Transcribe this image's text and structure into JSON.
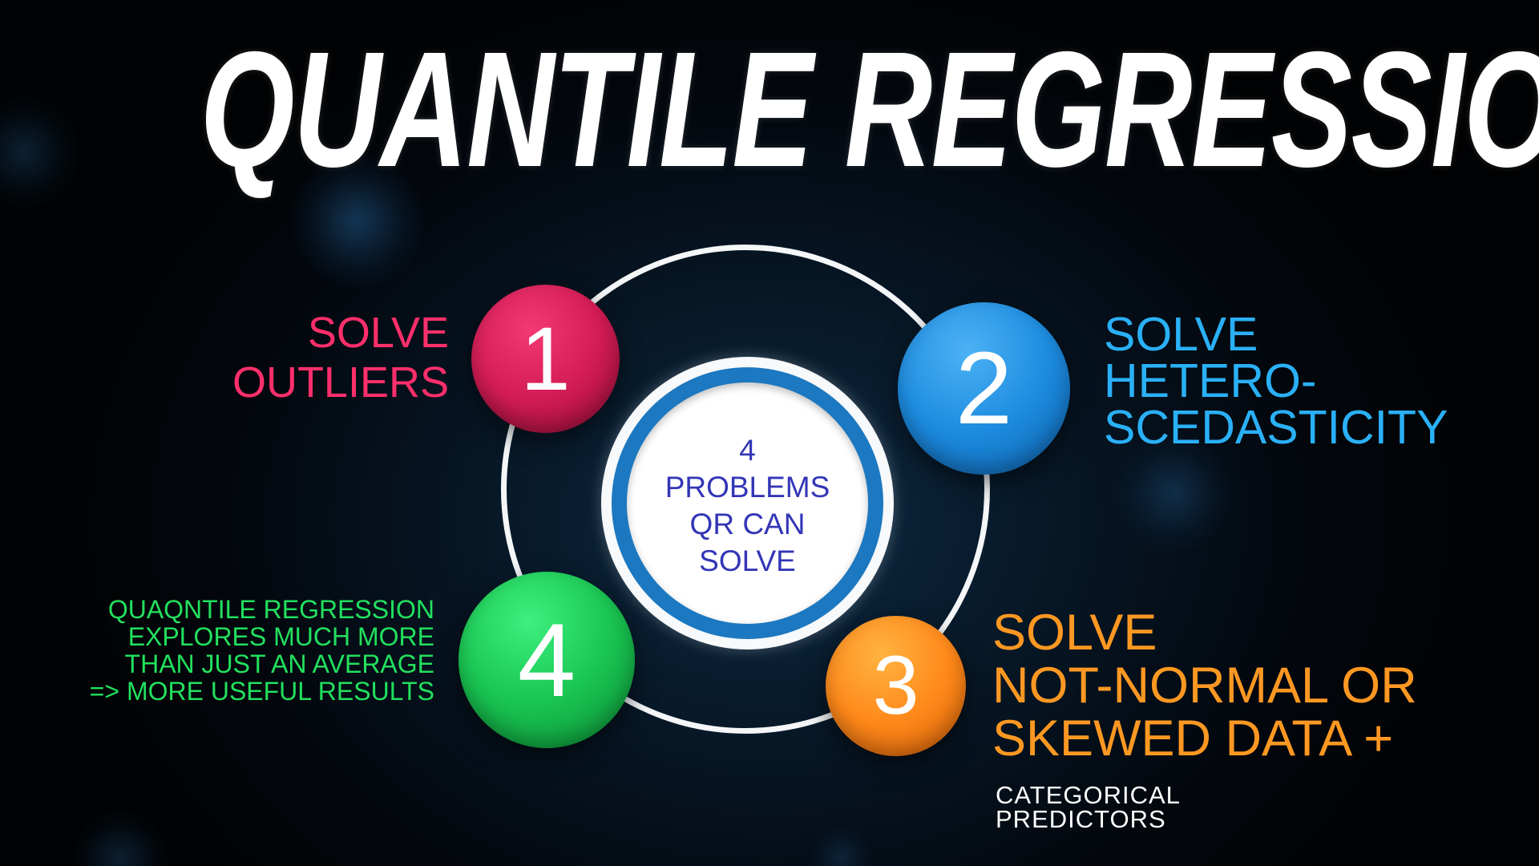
{
  "title": "QUANTILE REGRESSION",
  "hub": {
    "text": "4\nPROBLEMS\nQR CAN\nSOLVE"
  },
  "nodes": [
    {
      "number": "1",
      "label": "SOLVE\nOUTLIERS",
      "color": "#d41c56"
    },
    {
      "number": "2",
      "label": "SOLVE\nHETERO-\nSCEDASTICITY",
      "color": "#1d8ce0"
    },
    {
      "number": "3",
      "label": "SOLVE\nNOT-NORMAL OR\nSKEWED DATA +",
      "sublabel": "CATEGORICAL\nPREDICTORS",
      "color": "#ff8a1b"
    },
    {
      "number": "4",
      "label": "QUAQNTILE REGRESSION\nEXPLORES MUCH MORE\nTHAN JUST AN AVERAGE\n=> MORE USEFUL RESULTS",
      "color": "#19c451"
    }
  ],
  "colors": {
    "background": "#03070d",
    "ring": "#f4f6f8",
    "hub_ring": "#1c78c0",
    "hub_text": "#3336b6"
  }
}
